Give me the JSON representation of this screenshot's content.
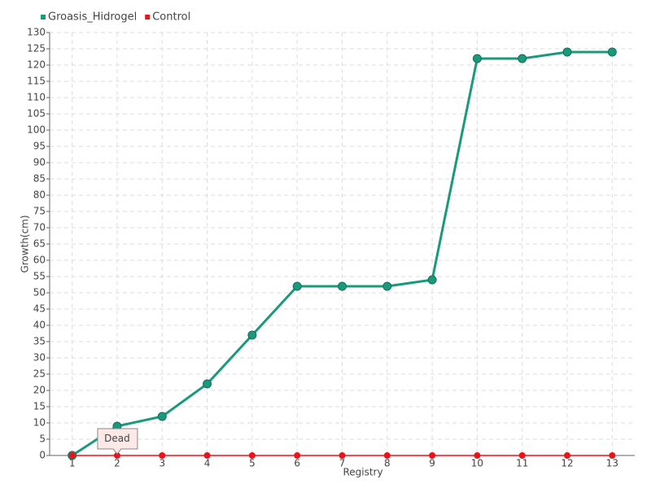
{
  "chart_data": {
    "type": "line",
    "x_label": "Registry",
    "y_label": "Growth(cm)",
    "categories": [
      "1",
      "2",
      "3",
      "4",
      "5",
      "6",
      "7",
      "8",
      "9",
      "10",
      "11",
      "12",
      "13"
    ],
    "series": [
      {
        "name": "Groasis_Hidrogel",
        "color": "#1a9a7a",
        "values": [
          0,
          9,
          12,
          22,
          37,
          52,
          52,
          52,
          54,
          122,
          122,
          124,
          124
        ]
      },
      {
        "name": "Control",
        "color": "#e8141c",
        "values": [
          0,
          0,
          0,
          0,
          0,
          0,
          0,
          0,
          0,
          0,
          0,
          0,
          0
        ]
      }
    ],
    "ylim": [
      0,
      130
    ],
    "yticks": [
      0,
      5,
      10,
      15,
      20,
      25,
      30,
      35,
      40,
      45,
      50,
      55,
      60,
      65,
      70,
      75,
      80,
      85,
      90,
      95,
      100,
      105,
      110,
      115,
      120,
      125,
      130
    ],
    "grid": true,
    "legend": "top-left",
    "annotations": [
      {
        "text": "Dead",
        "category": "2"
      }
    ]
  }
}
